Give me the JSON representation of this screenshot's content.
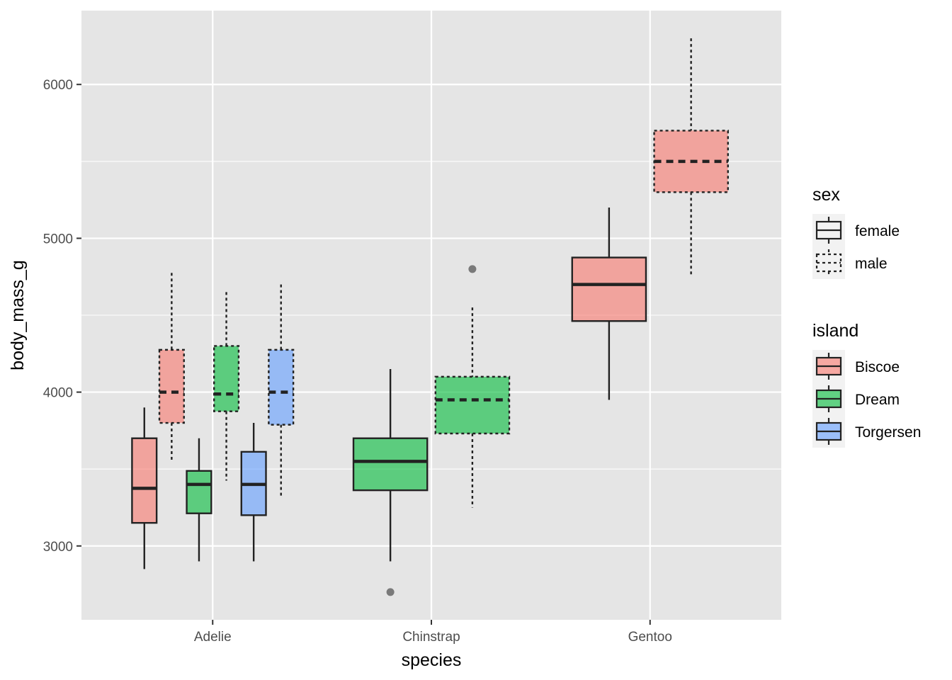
{
  "chart_data": {
    "type": "boxplot",
    "xlabel": "species",
    "ylabel": "body_mass_g",
    "categories": [
      "Adelie",
      "Chinstrap",
      "Gentoo"
    ],
    "y_ticks": [
      3000,
      4000,
      5000,
      6000
    ],
    "ylim": [
      2520,
      6480
    ],
    "grid": true,
    "legend_position": "right",
    "legends": [
      {
        "title": "sex",
        "entries": [
          {
            "label": "female",
            "linetype": "solid"
          },
          {
            "label": "male",
            "linetype": "dotted"
          }
        ]
      },
      {
        "title": "island",
        "entries": [
          {
            "label": "Biscoe",
            "color": "#F8766D"
          },
          {
            "label": "Dream",
            "color": "#00BA38"
          },
          {
            "label": "Torgersen",
            "color": "#619CFF"
          }
        ]
      }
    ],
    "boxes": [
      {
        "species": "Adelie",
        "sex": "female",
        "island": "Biscoe",
        "slot": 0,
        "nslots": 6,
        "min": 2850,
        "q1": 3150,
        "median": 3375,
        "q3": 3700,
        "max": 3900,
        "outliers": []
      },
      {
        "species": "Adelie",
        "sex": "male",
        "island": "Biscoe",
        "slot": 1,
        "nslots": 6,
        "min": 3550,
        "q1": 3800,
        "median": 4000,
        "q3": 4275,
        "max": 4775,
        "outliers": []
      },
      {
        "species": "Adelie",
        "sex": "female",
        "island": "Dream",
        "slot": 2,
        "nslots": 6,
        "min": 2900,
        "q1": 3212,
        "median": 3400,
        "q3": 3488,
        "max": 3700,
        "outliers": []
      },
      {
        "species": "Adelie",
        "sex": "male",
        "island": "Dream",
        "slot": 3,
        "nslots": 6,
        "min": 3425,
        "q1": 3875,
        "median": 3988,
        "q3": 4300,
        "max": 4650,
        "outliers": []
      },
      {
        "species": "Adelie",
        "sex": "female",
        "island": "Torgersen",
        "slot": 4,
        "nslots": 6,
        "min": 2900,
        "q1": 3200,
        "median": 3400,
        "q3": 3612,
        "max": 3800,
        "outliers": []
      },
      {
        "species": "Adelie",
        "sex": "male",
        "island": "Torgersen",
        "slot": 5,
        "nslots": 6,
        "min": 3325,
        "q1": 3788,
        "median": 4000,
        "q3": 4275,
        "max": 4700,
        "outliers": []
      },
      {
        "species": "Chinstrap",
        "sex": "female",
        "island": "Dream",
        "slot": 0,
        "nslots": 2,
        "min": 2900,
        "q1": 3362,
        "median": 3550,
        "q3": 3700,
        "max": 4150,
        "outliers": [
          2700
        ]
      },
      {
        "species": "Chinstrap",
        "sex": "male",
        "island": "Dream",
        "slot": 1,
        "nslots": 2,
        "min": 3250,
        "q1": 3731,
        "median": 3950,
        "q3": 4100,
        "max": 4550,
        "outliers": [
          4800
        ]
      },
      {
        "species": "Gentoo",
        "sex": "female",
        "island": "Biscoe",
        "slot": 0,
        "nslots": 2,
        "min": 3950,
        "q1": 4462,
        "median": 4700,
        "q3": 4875,
        "max": 5200,
        "outliers": []
      },
      {
        "species": "Gentoo",
        "sex": "male",
        "island": "Biscoe",
        "slot": 1,
        "nslots": 2,
        "min": 4750,
        "q1": 5300,
        "median": 5500,
        "q3": 5700,
        "max": 6300,
        "outliers": []
      }
    ]
  }
}
